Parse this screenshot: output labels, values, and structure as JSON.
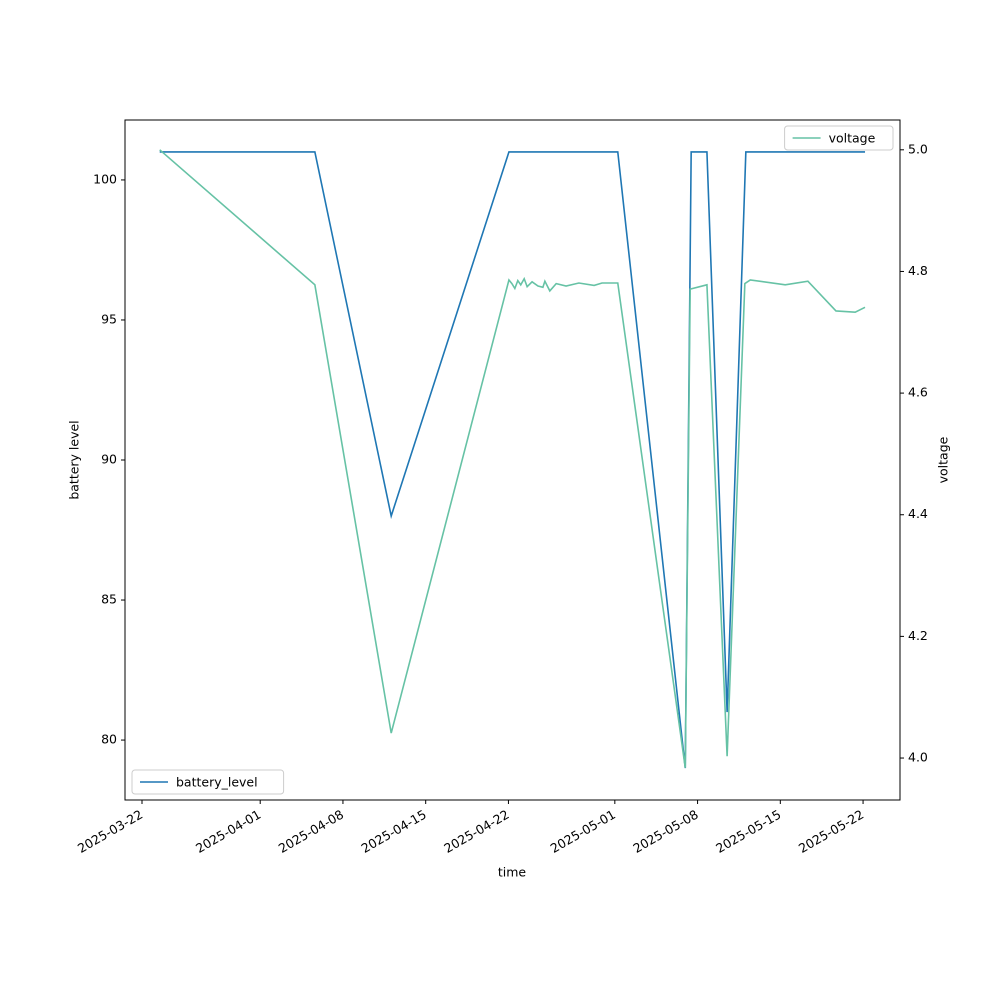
{
  "chart_data": {
    "type": "line",
    "xlabel": "time",
    "ylabel": "battery level",
    "y2label": "voltage",
    "xlim": [
      "2025-03-20T13:30",
      "2025-05-25T03:00"
    ],
    "xticks": [
      "2025-03-22",
      "2025-04-01",
      "2025-04-08",
      "2025-04-15",
      "2025-04-22",
      "2025-05-01",
      "2025-05-08",
      "2025-05-15",
      "2025-05-22"
    ],
    "ylim": [
      77.86,
      102.14
    ],
    "yticks": [
      80,
      85,
      90,
      95,
      100
    ],
    "y2lim": [
      3.931,
      5.049
    ],
    "y2ticks": [
      {
        "value": 4,
        "label": "4.0"
      },
      4.2,
      4.4,
      4.6,
      4.8,
      {
        "value": 5,
        "label": "5.0"
      }
    ],
    "series": [
      {
        "name": "battery_level",
        "color": "#1f77b4",
        "legend": "lower left",
        "x": [
          "2025-03-23T12:00",
          "2025-04-05T15:00",
          "2025-04-12T02:00",
          "2025-04-22T01:00",
          "2025-05-01T06:00",
          "2025-05-06T23:00",
          "2025-05-07T11:00",
          "2025-05-08T19:00",
          "2025-05-10T12:00",
          "2025-05-12T02:00",
          "2025-05-22T04:00"
        ],
        "values": [
          101,
          101,
          88,
          101,
          101,
          79,
          101,
          101,
          81,
          101,
          101
        ]
      },
      {
        "name": "voltage",
        "color": "#66c2a5",
        "axis": "y2",
        "legend": "upper right",
        "x": [
          "2025-03-23T12:00",
          "2025-04-05T15:00",
          "2025-04-12T02:00",
          "2025-04-22T01:00",
          "2025-04-22T07:00",
          "2025-04-22T13:00",
          "2025-04-22T19:00",
          "2025-04-23T01:00",
          "2025-04-23T08:00",
          "2025-04-23T14:00",
          "2025-04-24T00:00",
          "2025-04-24T12:00",
          "2025-04-24T22:00",
          "2025-04-25T02:00",
          "2025-04-25T12:00",
          "2025-04-26T01:00",
          "2025-04-26T21:00",
          "2025-04-27T23:00",
          "2025-04-29T06:00",
          "2025-04-29T22:00",
          "2025-05-01T06:00",
          "2025-05-06T23:00",
          "2025-05-07T09:00",
          "2025-05-08T19:00",
          "2025-05-10T12:00",
          "2025-05-12T00:00",
          "2025-05-12T11:00",
          "2025-05-15T10:00",
          "2025-05-17T08:00",
          "2025-05-19T17:00",
          "2025-05-21T08:00",
          "2025-05-22T04:00"
        ],
        "values": [
          5.0,
          4.778,
          4.041,
          4.786,
          4.78,
          4.772,
          4.785,
          4.778,
          4.788,
          4.775,
          4.783,
          4.776,
          4.774,
          4.784,
          4.768,
          4.78,
          4.776,
          4.781,
          4.777,
          4.781,
          4.781,
          3.984,
          4.771,
          4.778,
          4.003,
          4.78,
          4.786,
          4.778,
          4.784,
          4.735,
          4.733,
          4.741
        ]
      }
    ]
  }
}
